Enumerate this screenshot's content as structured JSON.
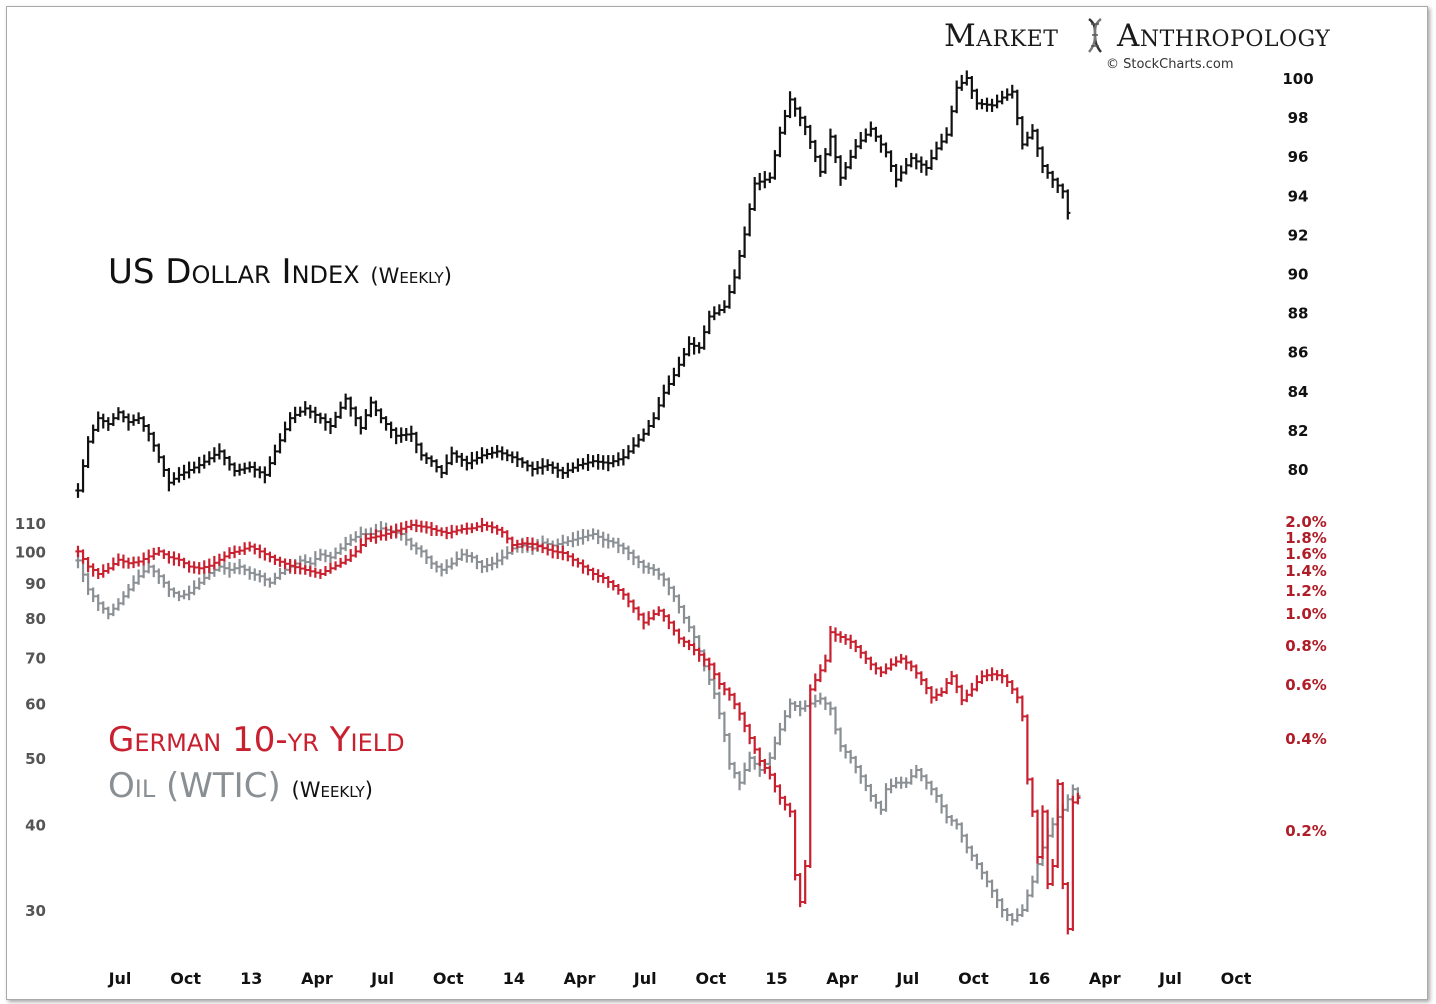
{
  "brand": {
    "market": "Market",
    "anthropology": "Anthropology",
    "credit": "© StockCharts.com"
  },
  "colors": {
    "dollar": "#111111",
    "yield": "#c8202f",
    "oil": "#8a8f93",
    "yield_label": "#b01c28",
    "axis_label": "#111111"
  },
  "x_axis": {
    "labels": [
      "Jul",
      "Oct",
      "13",
      "Apr",
      "Jul",
      "Oct",
      "14",
      "Apr",
      "Jul",
      "Oct",
      "15",
      "Apr",
      "Jul",
      "Oct",
      "16",
      "Apr",
      "Jul",
      "Oct"
    ],
    "weeks": [
      0,
      13,
      26,
      39,
      52,
      65,
      78,
      91,
      104,
      117,
      130,
      143,
      156,
      169,
      182,
      195,
      208,
      221
    ],
    "start": "2012-06 (first weekly bar)"
  },
  "chart_data": [
    {
      "type": "ohlc-bar",
      "title": "US Dollar Index",
      "subtitle": "(Weekly)",
      "ylim": [
        78,
        101
      ],
      "yticks": [
        80,
        82,
        84,
        86,
        88,
        90,
        92,
        94,
        96,
        98,
        100
      ],
      "y_position": "right",
      "anchors": [
        [
          0,
          78.9
        ],
        [
          2,
          81.4
        ],
        [
          4,
          82.6
        ],
        [
          6,
          82.3
        ],
        [
          8,
          82.9
        ],
        [
          10,
          82.4
        ],
        [
          12,
          82.6
        ],
        [
          14,
          81.8
        ],
        [
          16,
          80.6
        ],
        [
          18,
          79.3
        ],
        [
          20,
          79.7
        ],
        [
          24,
          80.2
        ],
        [
          28,
          80.9
        ],
        [
          31,
          79.9
        ],
        [
          34,
          80.1
        ],
        [
          37,
          79.7
        ],
        [
          39,
          80.9
        ],
        [
          42,
          82.6
        ],
        [
          45,
          83.1
        ],
        [
          48,
          82.6
        ],
        [
          50,
          82.2
        ],
        [
          53,
          83.6
        ],
        [
          56,
          82.1
        ],
        [
          58,
          83.4
        ],
        [
          60,
          82.6
        ],
        [
          63,
          81.7
        ],
        [
          66,
          81.8
        ],
        [
          68,
          80.7
        ],
        [
          70,
          80.4
        ],
        [
          72,
          79.8
        ],
        [
          74,
          80.8
        ],
        [
          77,
          80.3
        ],
        [
          80,
          80.7
        ],
        [
          83,
          80.9
        ],
        [
          87,
          80.5
        ],
        [
          90,
          80.0
        ],
        [
          93,
          80.2
        ],
        [
          96,
          79.8
        ],
        [
          99,
          80.2
        ],
        [
          102,
          80.4
        ],
        [
          105,
          80.3
        ],
        [
          108,
          80.6
        ],
        [
          110,
          81.2
        ],
        [
          112,
          81.8
        ],
        [
          114,
          82.6
        ],
        [
          116,
          83.9
        ],
        [
          118,
          84.8
        ],
        [
          121,
          86.4
        ],
        [
          123,
          86.2
        ],
        [
          125,
          87.8
        ],
        [
          128,
          88.3
        ],
        [
          130,
          89.8
        ],
        [
          132,
          92.0
        ],
        [
          134,
          94.6
        ],
        [
          137,
          94.9
        ],
        [
          139,
          97.2
        ],
        [
          141,
          98.9
        ],
        [
          144,
          97.5
        ],
        [
          147,
          95.2
        ],
        [
          149,
          97.0
        ],
        [
          151,
          94.9
        ],
        [
          154,
          96.5
        ],
        [
          157,
          97.4
        ],
        [
          160,
          96.2
        ],
        [
          162,
          94.8
        ],
        [
          165,
          95.9
        ],
        [
          168,
          95.4
        ],
        [
          170,
          96.4
        ],
        [
          172,
          97.1
        ],
        [
          174,
          99.5
        ],
        [
          176,
          100.0
        ],
        [
          178,
          98.7
        ],
        [
          181,
          98.6
        ],
        [
          183,
          99.0
        ],
        [
          185,
          99.3
        ],
        [
          187,
          96.6
        ],
        [
          189,
          97.3
        ],
        [
          191,
          95.5
        ],
        [
          193,
          94.8
        ],
        [
          195,
          94.2
        ],
        [
          196,
          93.3
        ]
      ],
      "last": 93.1
    },
    {
      "type": "ohlc-bar-overlay",
      "title": "German 10-yr Yield / Oil (WTIC)",
      "subtitle": "(Weekly)",
      "series": [
        {
          "name": "German 10-yr Yield",
          "axis": "right",
          "yticks_labels": [
            "2.0%",
            "1.8%",
            "1.6%",
            "1.4%",
            "1.2%",
            "1.0%",
            "0.8%",
            "0.6%",
            "0.4%",
            "0.2%"
          ],
          "yticks_values": [
            2.0,
            1.8,
            1.6,
            1.4,
            1.2,
            1.0,
            0.8,
            0.6,
            0.4,
            0.2
          ],
          "anchors": [
            [
              0,
              1.62
            ],
            [
              2,
              1.44
            ],
            [
              4,
              1.36
            ],
            [
              6,
              1.42
            ],
            [
              8,
              1.52
            ],
            [
              10,
              1.48
            ],
            [
              12,
              1.5
            ],
            [
              14,
              1.56
            ],
            [
              16,
              1.62
            ],
            [
              18,
              1.55
            ],
            [
              20,
              1.52
            ],
            [
              22,
              1.44
            ],
            [
              24,
              1.42
            ],
            [
              26,
              1.45
            ],
            [
              28,
              1.52
            ],
            [
              30,
              1.6
            ],
            [
              32,
              1.63
            ],
            [
              34,
              1.68
            ],
            [
              36,
              1.62
            ],
            [
              39,
              1.52
            ],
            [
              42,
              1.45
            ],
            [
              45,
              1.4
            ],
            [
              48,
              1.36
            ],
            [
              51,
              1.45
            ],
            [
              53,
              1.52
            ],
            [
              55,
              1.62
            ],
            [
              57,
              1.78
            ],
            [
              60,
              1.82
            ],
            [
              63,
              1.88
            ],
            [
              66,
              1.95
            ],
            [
              69,
              1.92
            ],
            [
              71,
              1.88
            ],
            [
              73,
              1.85
            ],
            [
              76,
              1.9
            ],
            [
              78,
              1.91
            ],
            [
              80,
              1.95
            ],
            [
              82,
              1.92
            ],
            [
              84,
              1.86
            ],
            [
              86,
              1.7
            ],
            [
              88,
              1.72
            ],
            [
              90,
              1.71
            ],
            [
              92,
              1.66
            ],
            [
              94,
              1.62
            ],
            [
              96,
              1.6
            ],
            [
              98,
              1.52
            ],
            [
              100,
              1.44
            ],
            [
              102,
              1.36
            ],
            [
              104,
              1.32
            ],
            [
              106,
              1.24
            ],
            [
              108,
              1.16
            ],
            [
              110,
              1.04
            ],
            [
              112,
              0.94
            ],
            [
              115,
              1.02
            ],
            [
              117,
              0.94
            ],
            [
              119,
              0.84
            ],
            [
              121,
              0.8
            ],
            [
              123,
              0.75
            ],
            [
              125,
              0.7
            ],
            [
              127,
              0.6
            ],
            [
              129,
              0.56
            ],
            [
              131,
              0.49
            ],
            [
              133,
              0.4
            ],
            [
              135,
              0.35
            ],
            [
              137,
              0.32
            ],
            [
              139,
              0.27
            ],
            [
              141,
              0.24
            ],
            [
              142,
              0.15
            ],
            [
              143,
              0.12
            ],
            [
              144,
              0.16
            ],
            [
              145,
              0.58
            ],
            [
              146,
              0.62
            ],
            [
              148,
              0.72
            ],
            [
              149,
              0.88
            ],
            [
              151,
              0.85
            ],
            [
              153,
              0.82
            ],
            [
              155,
              0.76
            ],
            [
              157,
              0.7
            ],
            [
              159,
              0.66
            ],
            [
              161,
              0.7
            ],
            [
              163,
              0.73
            ],
            [
              165,
              0.69
            ],
            [
              167,
              0.62
            ],
            [
              169,
              0.55
            ],
            [
              171,
              0.57
            ],
            [
              173,
              0.64
            ],
            [
              175,
              0.54
            ],
            [
              177,
              0.58
            ],
            [
              179,
              0.64
            ],
            [
              181,
              0.65
            ],
            [
              183,
              0.64
            ],
            [
              185,
              0.58
            ],
            [
              186,
              0.55
            ],
            [
              187,
              0.48
            ],
            [
              188,
              0.31
            ],
            [
              189,
              0.24
            ],
            [
              190,
              0.17
            ],
            [
              191,
              0.24
            ],
            [
              192,
              0.14
            ],
            [
              193,
              0.16
            ],
            [
              194,
              0.3
            ],
            [
              195,
              0.14
            ],
            [
              196,
              0.09
            ],
            [
              197,
              0.26
            ],
            [
              198,
              0.27
            ]
          ]
        },
        {
          "name": "Oil (WTIC)",
          "axis": "left",
          "yticks": [
            30,
            40,
            50,
            60,
            70,
            80,
            90,
            100,
            110
          ],
          "ylim": [
            25.5,
            112
          ],
          "anchors": [
            [
              0,
              97
            ],
            [
              2,
              88
            ],
            [
              4,
              84
            ],
            [
              6,
              81
            ],
            [
              8,
              84
            ],
            [
              10,
              88
            ],
            [
              12,
              92
            ],
            [
              14,
              95
            ],
            [
              16,
              92
            ],
            [
              18,
              88
            ],
            [
              20,
              86
            ],
            [
              22,
              87
            ],
            [
              24,
              90
            ],
            [
              26,
              93
            ],
            [
              28,
              95
            ],
            [
              30,
              94
            ],
            [
              32,
              95
            ],
            [
              34,
              93
            ],
            [
              36,
              92
            ],
            [
              38,
              90
            ],
            [
              40,
              93
            ],
            [
              42,
              95
            ],
            [
              44,
              97
            ],
            [
              46,
              96
            ],
            [
              48,
              99
            ],
            [
              50,
              98
            ],
            [
              52,
              101
            ],
            [
              54,
              104
            ],
            [
              56,
              106
            ],
            [
              58,
              106
            ],
            [
              60,
              108
            ],
            [
              62,
              107
            ],
            [
              64,
              106
            ],
            [
              66,
              102
            ],
            [
              68,
              100
            ],
            [
              70,
              96
            ],
            [
              72,
              94
            ],
            [
              74,
              96
            ],
            [
              76,
              99
            ],
            [
              78,
              98
            ],
            [
              80,
              95
            ],
            [
              82,
              96
            ],
            [
              84,
              98
            ],
            [
              86,
              101
            ],
            [
              88,
              102
            ],
            [
              90,
              101
            ],
            [
              92,
              103
            ],
            [
              94,
              102
            ],
            [
              96,
              103
            ],
            [
              98,
              104
            ],
            [
              100,
              105
            ],
            [
              102,
              106
            ],
            [
              104,
              104
            ],
            [
              106,
              103
            ],
            [
              108,
              101
            ],
            [
              110,
              98
            ],
            [
              112,
              95
            ],
            [
              114,
              94
            ],
            [
              116,
              91
            ],
            [
              118,
              86
            ],
            [
              120,
              80
            ],
            [
              122,
              75
            ],
            [
              124,
              68
            ],
            [
              126,
              62
            ],
            [
              128,
              54
            ],
            [
              129,
              49
            ],
            [
              131,
              46
            ],
            [
              133,
              50
            ],
            [
              135,
              48
            ],
            [
              137,
              50
            ],
            [
              139,
              55
            ],
            [
              141,
              60
            ],
            [
              143,
              59
            ],
            [
              145,
              60
            ],
            [
              147,
              61
            ],
            [
              149,
              59
            ],
            [
              150,
              55
            ],
            [
              151,
              52
            ],
            [
              153,
              50
            ],
            [
              155,
              47
            ],
            [
              157,
              44
            ],
            [
              159,
              42
            ],
            [
              160,
              45
            ],
            [
              162,
              46
            ],
            [
              164,
              46
            ],
            [
              166,
              48
            ],
            [
              168,
              46
            ],
            [
              170,
              44
            ],
            [
              172,
              41
            ],
            [
              174,
              40
            ],
            [
              176,
              37
            ],
            [
              178,
              35
            ],
            [
              180,
              33
            ],
            [
              182,
              31
            ],
            [
              183,
              30
            ],
            [
              185,
              29
            ],
            [
              187,
              30
            ],
            [
              189,
              33
            ],
            [
              191,
              37
            ],
            [
              193,
              40
            ],
            [
              195,
              42
            ],
            [
              197,
              45
            ],
            [
              198,
              44
            ]
          ]
        }
      ]
    }
  ]
}
